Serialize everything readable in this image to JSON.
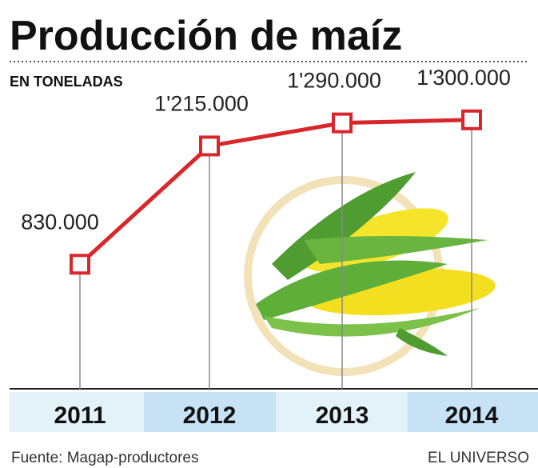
{
  "chart_data": {
    "type": "line",
    "title": "Producción de maíz",
    "subtitle": "EN TONELADAS",
    "categories": [
      "2011",
      "2012",
      "2013",
      "2014"
    ],
    "series": [
      {
        "color": "#d9262b",
        "values": [
          830000,
          1215000,
          1290000,
          1300000
        ],
        "value_labels": [
          "830.000",
          "1'215.000",
          "1'290.000",
          "1'300.000"
        ]
      }
    ],
    "source": "Fuente: Magap-productores",
    "credit": "EL UNIVERSO"
  }
}
